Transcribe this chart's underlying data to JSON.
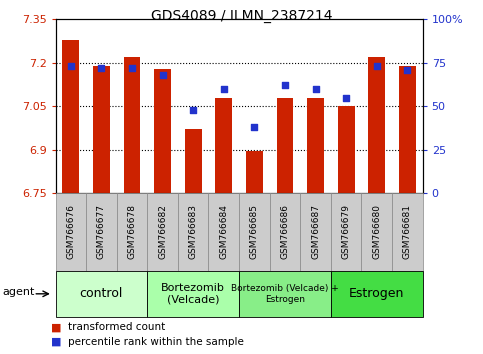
{
  "title": "GDS4089 / ILMN_2387214",
  "categories": [
    "GSM766676",
    "GSM766677",
    "GSM766678",
    "GSM766682",
    "GSM766683",
    "GSM766684",
    "GSM766685",
    "GSM766686",
    "GSM766687",
    "GSM766679",
    "GSM766680",
    "GSM766681"
  ],
  "bar_values": [
    7.28,
    7.19,
    7.22,
    7.18,
    6.97,
    7.08,
    6.895,
    7.08,
    7.08,
    7.05,
    7.22,
    7.19
  ],
  "dot_values": [
    73,
    72,
    72,
    68,
    48,
    60,
    38,
    62,
    60,
    55,
    73,
    71
  ],
  "bar_color": "#cc2200",
  "dot_color": "#2233cc",
  "ymin": 6.75,
  "ymax": 7.35,
  "y2min": 0,
  "y2max": 100,
  "yticks": [
    6.75,
    6.9,
    7.05,
    7.2,
    7.35
  ],
  "y2ticks": [
    0,
    25,
    50,
    75,
    100
  ],
  "ytick_labels": [
    "6.75",
    "6.9",
    "7.05",
    "7.2",
    "7.35"
  ],
  "y2tick_labels": [
    "0",
    "25",
    "50",
    "75",
    "100%"
  ],
  "gridlines": [
    6.9,
    7.05,
    7.2
  ],
  "groups": [
    {
      "label": "control",
      "start": 0,
      "end": 3,
      "color": "#ccffcc",
      "fontsize": 9
    },
    {
      "label": "Bortezomib\n(Velcade)",
      "start": 3,
      "end": 6,
      "color": "#aaffaa",
      "fontsize": 8
    },
    {
      "label": "Bortezomib (Velcade) +\nEstrogen",
      "start": 6,
      "end": 9,
      "color": "#88ee88",
      "fontsize": 6.5
    },
    {
      "label": "Estrogen",
      "start": 9,
      "end": 12,
      "color": "#44dd44",
      "fontsize": 9
    }
  ],
  "legend_items": [
    {
      "color": "#cc2200",
      "label": "transformed count"
    },
    {
      "color": "#2233cc",
      "label": "percentile rank within the sample"
    }
  ],
  "bar_width": 0.55,
  "cell_color": "#cccccc",
  "cell_edge_color": "#888888"
}
